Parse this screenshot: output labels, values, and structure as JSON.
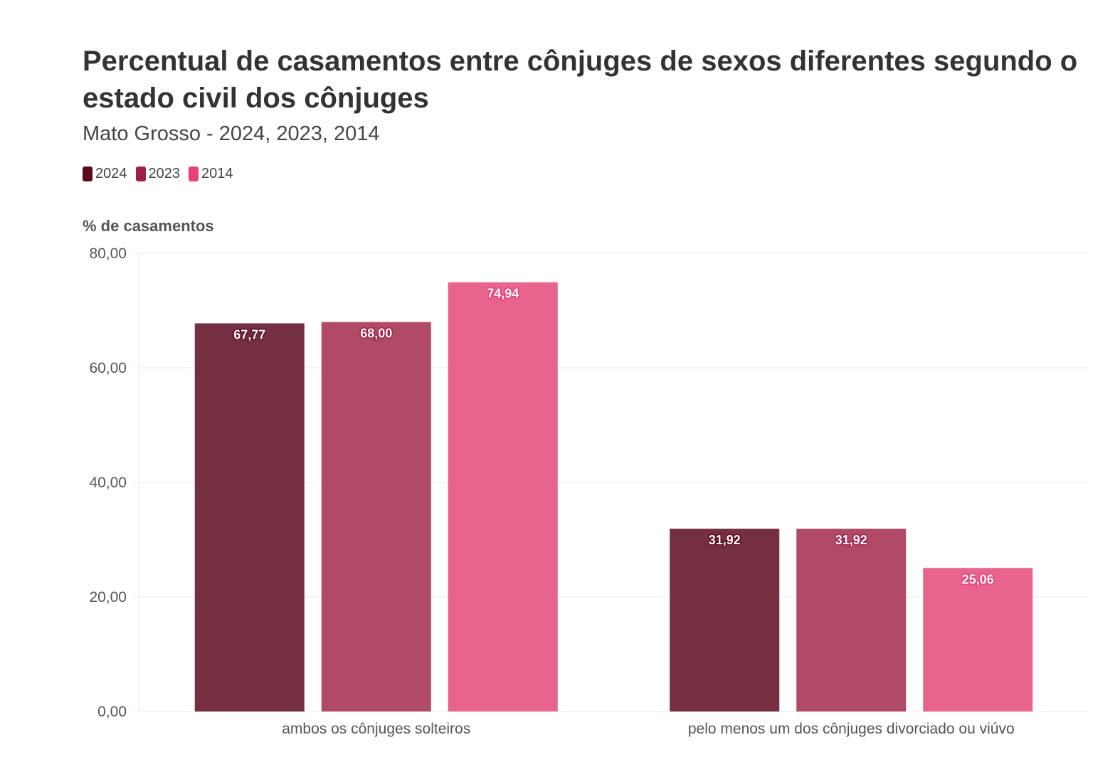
{
  "chart_data": {
    "type": "bar",
    "title": "Percentual de casamentos entre cônjuges de sexos diferentes segundo o estado civil dos cônjuges",
    "subtitle": "Mato Grosso - 2024, 2023, 2014",
    "xlabel": "",
    "ylabel": "% de casamentos",
    "ylim": [
      0,
      80
    ],
    "yticks": [
      "0,00",
      "20,00",
      "40,00",
      "60,00",
      "80,00"
    ],
    "grid": true,
    "legend_position": "top-left",
    "categories": [
      "ambos os cônjuges solteiros",
      "pelo menos um dos cônjuges divorciado ou viúvo"
    ],
    "series": [
      {
        "name": "2024",
        "values": [
          67.77,
          31.92
        ],
        "labels": [
          "67,77",
          "31,92"
        ],
        "color": "#5c0a1e",
        "bar_color": "#742f40"
      },
      {
        "name": "2023",
        "values": [
          68.0,
          31.92
        ],
        "labels": [
          "68,00",
          "31,92"
        ],
        "color": "#9e1f4a",
        "bar_color": "#b04a66"
      },
      {
        "name": "2014",
        "values": [
          74.94,
          25.06
        ],
        "labels": [
          "74,94",
          "25,06"
        ],
        "color": "#e8407a",
        "bar_color": "#e8648c"
      }
    ]
  }
}
